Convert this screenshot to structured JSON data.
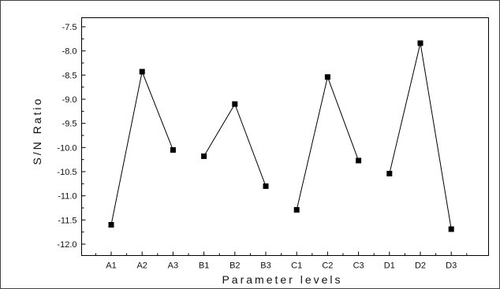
{
  "chart_data": {
    "type": "line",
    "title": "",
    "xlabel": "Parameter levels",
    "ylabel": "S/N Ratio",
    "categories": [
      "A1",
      "A2",
      "A3",
      "B1",
      "B2",
      "B3",
      "C1",
      "C2",
      "C3",
      "D1",
      "D2",
      "D3"
    ],
    "groups": [
      {
        "categories": [
          "A1",
          "A2",
          "A3"
        ],
        "values": [
          -11.6,
          -8.43,
          -10.05
        ]
      },
      {
        "categories": [
          "B1",
          "B2",
          "B3"
        ],
        "values": [
          -10.18,
          -9.1,
          -10.8
        ]
      },
      {
        "categories": [
          "C1",
          "C2",
          "C3"
        ],
        "values": [
          -11.29,
          -8.54,
          -10.27
        ]
      },
      {
        "categories": [
          "D1",
          "D2",
          "D3"
        ],
        "values": [
          -10.54,
          -7.84,
          -11.69
        ]
      }
    ],
    "yticks": [
      "-7.5",
      "-8.0",
      "-8.5",
      "-9.0",
      "-9.5",
      "-10.0",
      "-10.5",
      "-11.0",
      "-11.5",
      "-12.0"
    ],
    "ylim": [
      -12.2,
      -7.4
    ],
    "marker": "square",
    "line_color": "#000000",
    "marker_color": "#000000",
    "grid": false,
    "legend": "none"
  }
}
